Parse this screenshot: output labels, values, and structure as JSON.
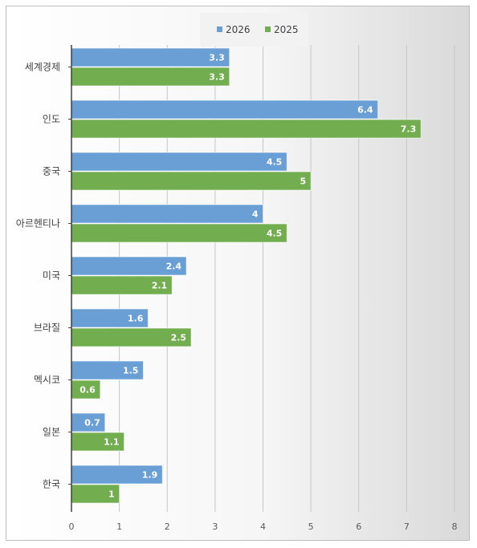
{
  "chart_data": {
    "type": "bar",
    "orientation": "horizontal",
    "categories": [
      "세계경제",
      "인도",
      "중국",
      "아르헨티나",
      "미국",
      "브라질",
      "멕시코",
      "일본",
      "한국"
    ],
    "series": [
      {
        "name": "2026",
        "color": "#6a9fd6",
        "values": [
          3.3,
          6.4,
          4.5,
          4,
          2.4,
          1.6,
          1.5,
          0.7,
          1.9
        ]
      },
      {
        "name": "2025",
        "color": "#72ad4f",
        "values": [
          3.3,
          7.3,
          5,
          4.5,
          2.1,
          2.5,
          0.6,
          1.1,
          1
        ]
      }
    ],
    "xticks": [
      "0",
      "1",
      "2",
      "3",
      "4",
      "5",
      "6",
      "7",
      "8"
    ],
    "xlim": [
      0,
      8
    ],
    "legend_position": "top-right",
    "grid": "vertical",
    "title": "",
    "xlabel": "",
    "ylabel": ""
  }
}
